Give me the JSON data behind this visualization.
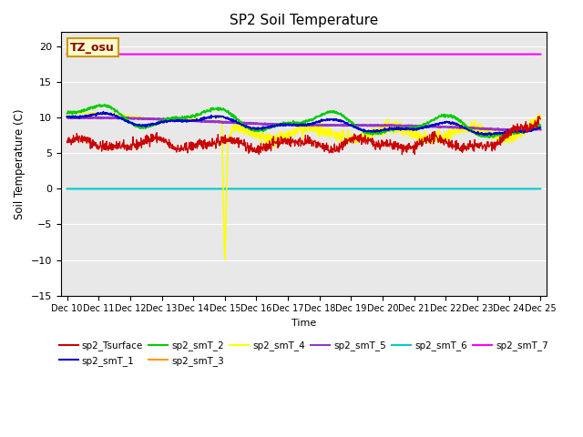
{
  "title": "SP2 Soil Temperature",
  "xlabel": "Time",
  "ylabel": "Soil Temperature (C)",
  "ylim": [
    -15,
    22
  ],
  "yticks": [
    -15,
    -10,
    -5,
    0,
    5,
    10,
    15,
    20
  ],
  "background_color": "#e8e8e8",
  "annotation_text": "TZ_osu",
  "series_colors": {
    "sp2_Tsurface": "#cc0000",
    "sp2_smT_1": "#0000cc",
    "sp2_smT_2": "#00cc00",
    "sp2_smT_3": "#ff9900",
    "sp2_smT_4": "#ffff00",
    "sp2_smT_5": "#9933cc",
    "sp2_smT_6": "#00cccc",
    "sp2_smT_7": "#ff00ff"
  }
}
